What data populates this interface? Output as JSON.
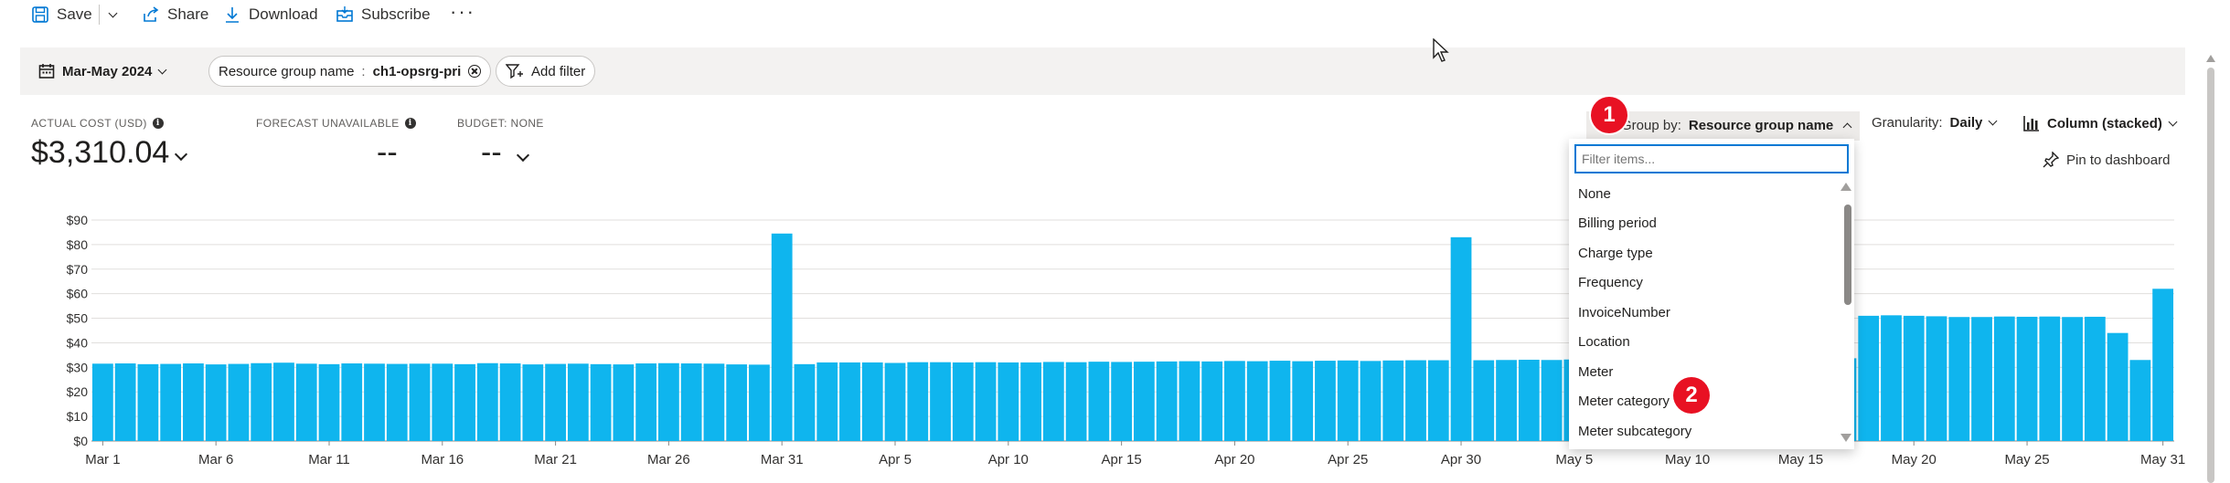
{
  "toolbar": {
    "save_label": "Save",
    "share_label": "Share",
    "download_label": "Download",
    "subscribe_label": "Subscribe",
    "more_label": "···"
  },
  "filters": {
    "date_range": "Mar-May 2024",
    "filter_key": "Resource group name",
    "filter_sep": ":",
    "filter_value": "ch1-opsrg-pri",
    "add_filter_label": "Add filter"
  },
  "kpis": {
    "actual_cost_label": "ACTUAL COST (USD)",
    "actual_cost_value": "$3,310.04",
    "forecast_label": "FORECAST UNAVAILABLE",
    "forecast_value": "--",
    "budget_label": "BUDGET: NONE",
    "budget_value": "--"
  },
  "controls": {
    "group_by_prefix": "Group by:",
    "group_by_value": "Resource group name",
    "granularity_prefix": "Granularity:",
    "granularity_value": "Daily",
    "chart_type": "Column (stacked)",
    "pin_label": "Pin to dashboard"
  },
  "dropdown": {
    "placeholder": "Filter items...",
    "items": [
      "None",
      "Billing period",
      "Charge type",
      "Frequency",
      "InvoiceNumber",
      "Location",
      "Meter",
      "Meter category",
      "Meter subcategory"
    ]
  },
  "badges": {
    "one": "1",
    "two": "2"
  },
  "colors": {
    "bar": "#0fb5ee",
    "accent": "#0078d4",
    "badge": "#e81123"
  },
  "chart_data": {
    "type": "bar",
    "ylim": [
      0,
      90
    ],
    "yticks": [
      "$0",
      "$10",
      "$20",
      "$30",
      "$40",
      "$50",
      "$60",
      "$70",
      "$80",
      "$90"
    ],
    "xticks": [
      "Mar 1",
      "Mar 6",
      "Mar 11",
      "Mar 16",
      "Mar 21",
      "Mar 26",
      "Mar 31",
      "Apr 5",
      "Apr 10",
      "Apr 15",
      "Apr 20",
      "Apr 25",
      "Apr 30",
      "May 5",
      "May 10",
      "May 15",
      "May 20",
      "May 25",
      "May 31"
    ],
    "values": [
      31.5,
      31.6,
      31.3,
      31.4,
      31.6,
      31.2,
      31.4,
      31.7,
      31.9,
      31.5,
      31.3,
      31.6,
      31.5,
      31.4,
      31.5,
      31.5,
      31.3,
      31.7,
      31.6,
      31.2,
      31.4,
      31.5,
      31.3,
      31.2,
      31.6,
      31.7,
      31.6,
      31.5,
      31.2,
      31.1,
      84.5,
      31.3,
      32.0,
      32.0,
      32.0,
      31.8,
      32.1,
      32.1,
      32.0,
      32.1,
      32.0,
      32.0,
      32.2,
      32.1,
      32.3,
      32.2,
      32.3,
      32.4,
      32.5,
      32.4,
      32.6,
      32.5,
      32.7,
      32.5,
      32.7,
      32.8,
      32.6,
      32.8,
      32.9,
      32.9,
      83.0,
      32.9,
      33.0,
      33.1,
      33.0,
      33.2,
      33.1,
      33.2,
      33.2,
      33.3,
      33.2,
      33.3,
      33.4,
      33.4,
      33.5,
      33.5,
      33.6,
      33.7,
      51.0,
      51.2,
      51.0,
      50.8,
      50.5,
      50.5,
      50.7,
      50.6,
      50.7,
      50.5,
      50.6,
      44.0,
      33.0,
      62.0
    ]
  }
}
